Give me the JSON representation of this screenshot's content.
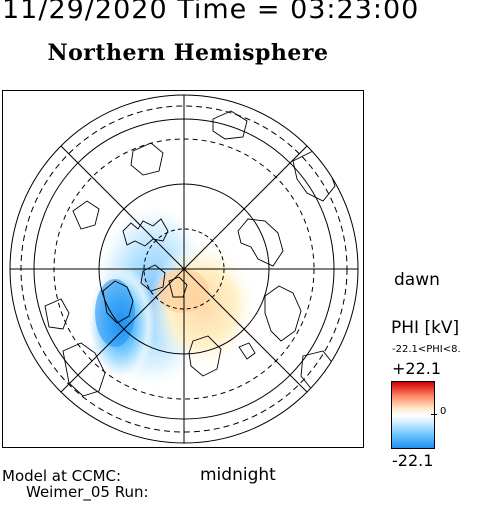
{
  "header": {
    "datetime_text": "11/29/2020 Time = 03:23:00"
  },
  "map": {
    "title": "Northern Hemisphere",
    "dawn_label": "dawn",
    "midnight_label": "midnight",
    "model_line1": "Model at CCMC:",
    "model_line2": "Weimer_05 Run:"
  },
  "colorbar": {
    "title": "PHI [kV]",
    "range_text": "-22.1<PHI<8.",
    "max_label": "+22.1",
    "min_label": "-22.1",
    "zero_label": "0",
    "colors": [
      "#d40000",
      "#ff8a6a",
      "#ffffff",
      "#6cc6ff",
      "#1f8ff2"
    ]
  }
}
